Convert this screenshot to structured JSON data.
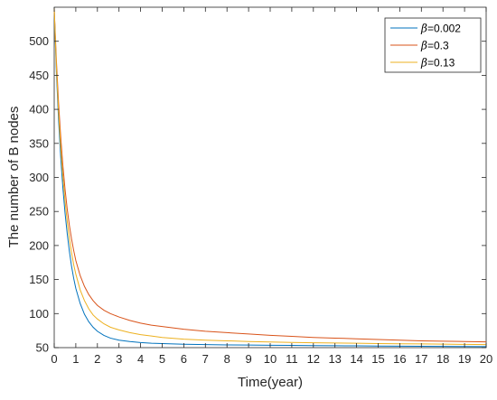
{
  "chart_data": {
    "type": "line",
    "title": "",
    "xlabel": "Time(year)",
    "ylabel": "The number of B nodes",
    "xlim": [
      0,
      20
    ],
    "ylim": [
      50,
      550
    ],
    "xticks": [
      0,
      1,
      2,
      3,
      4,
      5,
      6,
      7,
      8,
      9,
      10,
      11,
      12,
      13,
      14,
      15,
      16,
      17,
      18,
      19,
      20
    ],
    "yticks": [
      50,
      100,
      150,
      200,
      250,
      300,
      350,
      400,
      450,
      500
    ],
    "grid": false,
    "legend_position": "top-right",
    "series": [
      {
        "name": "=0.002",
        "symbol": "β",
        "color": "#0072BD",
        "x": [
          0,
          0.1,
          0.2,
          0.3,
          0.4,
          0.5,
          0.6,
          0.7,
          0.8,
          0.9,
          1,
          1.2,
          1.4,
          1.6,
          1.8,
          2,
          2.3,
          2.6,
          3,
          3.5,
          4,
          4.5,
          5,
          6,
          7,
          8,
          9,
          10,
          11,
          12,
          13,
          14,
          15,
          16,
          17,
          18,
          19,
          20
        ],
        "y": [
          548,
          455,
          385,
          330,
          285,
          248,
          218,
          192,
          170,
          152,
          137,
          115,
          99,
          88,
          80,
          74,
          68,
          64,
          61,
          59,
          57.5,
          56.5,
          56,
          55,
          54.5,
          54,
          53.8,
          53.5,
          53.3,
          53,
          52.8,
          52.6,
          52.4,
          52.2,
          52,
          51.8,
          51.6,
          51.5
        ]
      },
      {
        "name": "=0.3",
        "symbol": "β",
        "color": "#D95319",
        "x": [
          0,
          0.1,
          0.2,
          0.3,
          0.4,
          0.5,
          0.6,
          0.7,
          0.8,
          0.9,
          1,
          1.2,
          1.4,
          1.6,
          1.8,
          2,
          2.3,
          2.6,
          3,
          3.5,
          4,
          4.5,
          5,
          6,
          7,
          8,
          9,
          10,
          11,
          12,
          13,
          14,
          15,
          16,
          17,
          18,
          19,
          20
        ],
        "y": [
          548,
          472,
          410,
          360,
          318,
          283,
          254,
          230,
          210,
          193,
          178,
          156,
          140,
          128,
          119,
          112,
          105,
          100,
          95,
          90,
          86,
          83,
          81,
          77,
          74,
          72,
          70,
          68,
          66.5,
          65,
          64,
          63,
          62,
          61,
          60,
          59.5,
          59,
          58.5
        ]
      },
      {
        "name": "=0.13",
        "symbol": "β",
        "color": "#EDB120",
        "x": [
          0,
          0.1,
          0.2,
          0.3,
          0.4,
          0.5,
          0.6,
          0.7,
          0.8,
          0.9,
          1,
          1.2,
          1.4,
          1.6,
          1.8,
          2,
          2.3,
          2.6,
          3,
          3.5,
          4,
          4.5,
          5,
          6,
          7,
          8,
          9,
          10,
          11,
          12,
          13,
          14,
          15,
          16,
          17,
          18,
          19,
          20
        ],
        "y": [
          548,
          463,
          397,
          345,
          302,
          266,
          236,
          211,
          190,
          172,
          158,
          135,
          119,
          107,
          98,
          92,
          85,
          80,
          76,
          72,
          69,
          67,
          65,
          62.5,
          61,
          60,
          59,
          58.3,
          57.7,
          57.2,
          56.8,
          56.4,
          56,
          55.7,
          55.4,
          55.1,
          54.8,
          54.5
        ]
      }
    ]
  }
}
